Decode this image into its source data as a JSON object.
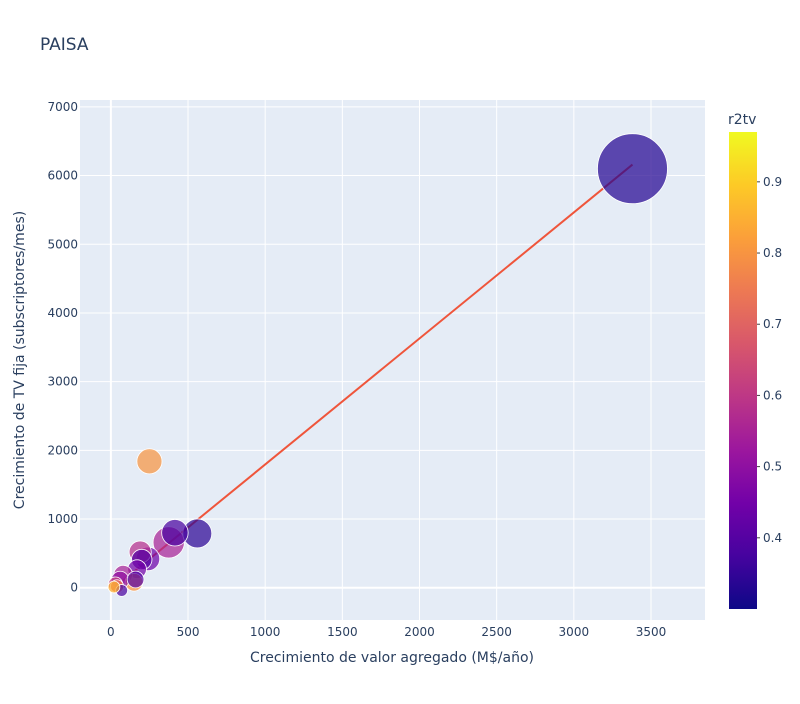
{
  "chart_data": {
    "type": "scatter",
    "title": "PAISA",
    "xlabel": "Crecimiento de valor agregado (M$/año)",
    "ylabel": "Crecimiento de TV fija (subscriptores/mes)",
    "xlim": [
      -200,
      3850
    ],
    "ylim": [
      -470,
      7100
    ],
    "xticks": [
      0,
      500,
      1000,
      1500,
      2000,
      2500,
      3000,
      3500
    ],
    "yticks": [
      0,
      1000,
      2000,
      3000,
      4000,
      5000,
      6000,
      7000
    ],
    "grid": true,
    "plot_bg": "#e5ecf6",
    "colorbar": {
      "title": "r2tv",
      "min": 0.3,
      "max": 0.97,
      "ticks": [
        0.4,
        0.5,
        0.6,
        0.7,
        0.8,
        0.9
      ],
      "colorscale": [
        "#0d0887",
        "#46039f",
        "#7201a8",
        "#9c179e",
        "#bd3786",
        "#d8576b",
        "#ed7953",
        "#fb9f3a",
        "#fdca26",
        "#f0f921"
      ]
    },
    "trendline": {
      "color": "#ef553b",
      "x": [
        0,
        3380
      ],
      "y": [
        -40,
        6160
      ]
    },
    "points": [
      {
        "x": 3380,
        "y": 6100,
        "size": 7.0,
        "r2tv": 0.33
      },
      {
        "x": 560,
        "y": 790,
        "size": 1.2,
        "r2tv": 0.34
      },
      {
        "x": 415,
        "y": 800,
        "size": 1.0,
        "r2tv": 0.38
      },
      {
        "x": 375,
        "y": 660,
        "size": 1.4,
        "r2tv": 0.55
      },
      {
        "x": 250,
        "y": 1840,
        "size": 0.9,
        "r2tv": 0.8
      },
      {
        "x": 240,
        "y": 420,
        "size": 0.8,
        "r2tv": 0.44
      },
      {
        "x": 200,
        "y": 410,
        "size": 0.6,
        "r2tv": 0.4
      },
      {
        "x": 190,
        "y": 520,
        "size": 0.7,
        "r2tv": 0.58
      },
      {
        "x": 170,
        "y": 270,
        "size": 0.5,
        "r2tv": 0.45
      },
      {
        "x": 160,
        "y": 120,
        "size": 0.4,
        "r2tv": 0.4
      },
      {
        "x": 150,
        "y": 80,
        "size": 0.45,
        "r2tv": 0.8
      },
      {
        "x": 80,
        "y": 190,
        "size": 0.5,
        "r2tv": 0.55
      },
      {
        "x": 60,
        "y": 110,
        "size": 0.45,
        "r2tv": 0.5
      },
      {
        "x": 70,
        "y": -40,
        "size": 0.2,
        "r2tv": 0.38
      },
      {
        "x": 30,
        "y": 50,
        "size": 0.3,
        "r2tv": 0.62
      },
      {
        "x": 40,
        "y": 20,
        "size": 0.25,
        "r2tv": 0.75
      },
      {
        "x": 20,
        "y": 10,
        "size": 0.2,
        "r2tv": 0.85
      }
    ]
  }
}
